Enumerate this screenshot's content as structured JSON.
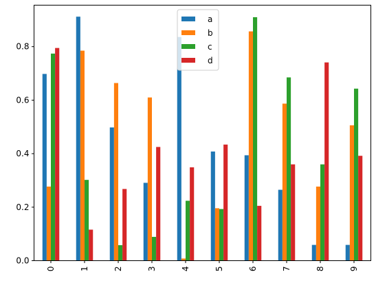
{
  "chart_data": {
    "type": "bar",
    "categories": [
      "0",
      "1",
      "2",
      "3",
      "4",
      "5",
      "6",
      "7",
      "8",
      "9"
    ],
    "series": [
      {
        "name": "a",
        "color": "#1f77b4",
        "values": [
          0.698,
          0.912,
          0.498,
          0.291,
          0.836,
          0.408,
          0.394,
          0.265,
          0.059,
          0.059
        ]
      },
      {
        "name": "b",
        "color": "#ff7f0e",
        "values": [
          0.277,
          0.785,
          0.664,
          0.61,
          0.008,
          0.196,
          0.857,
          0.587,
          0.277,
          0.506
        ]
      },
      {
        "name": "c",
        "color": "#2ca02c",
        "values": [
          0.774,
          0.302,
          0.058,
          0.089,
          0.224,
          0.193,
          0.91,
          0.685,
          0.36,
          0.643
        ]
      },
      {
        "name": "d",
        "color": "#d62728",
        "values": [
          0.795,
          0.116,
          0.268,
          0.425,
          0.349,
          0.434,
          0.205,
          0.36,
          0.741,
          0.392
        ]
      }
    ],
    "yticks": [
      "0.0",
      "0.2",
      "0.4",
      "0.6",
      "0.8"
    ],
    "ylim": [
      0,
      0.955
    ],
    "xlabel": "",
    "ylabel": "",
    "title": "",
    "legend_position": "top-center",
    "grid": false
  }
}
